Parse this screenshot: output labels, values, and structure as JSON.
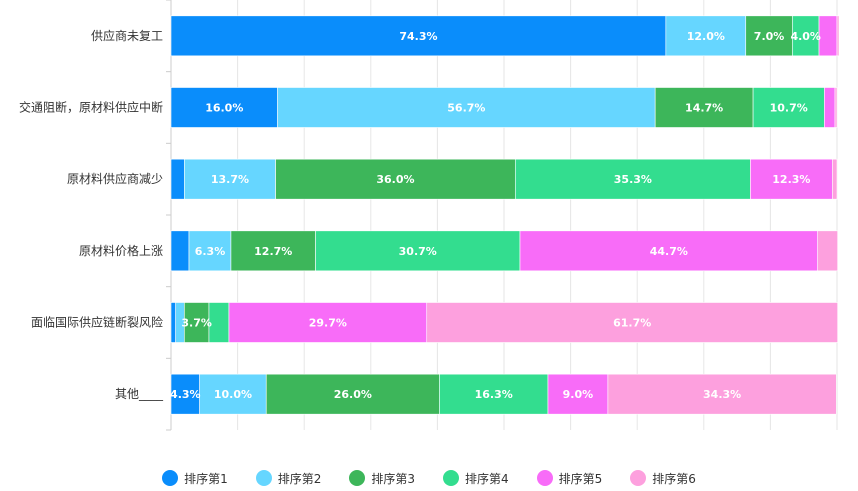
{
  "chart_data": {
    "type": "bar",
    "orientation": "horizontal",
    "stacked": true,
    "title": "",
    "xlabel": "",
    "ylabel": "",
    "xlim": [
      0,
      100
    ],
    "grid": true,
    "legend_position": "bottom",
    "categories": [
      "供应商未复工",
      "交通阻断，原材料供应中断",
      "原材料供应商减少",
      "原材料价格上涨",
      "面临国际供应链断裂风险",
      "其他____"
    ],
    "series": [
      {
        "name": "排序第1",
        "color": "#0A8DFB",
        "values": [
          74.3,
          16.0,
          2.0,
          2.7,
          0.7,
          4.3
        ],
        "labels": [
          "74.3%",
          "16.0%",
          "",
          "",
          "",
          "4.3%"
        ]
      },
      {
        "name": "排序第2",
        "color": "#66D6FF",
        "values": [
          12.0,
          56.7,
          13.7,
          6.3,
          1.3,
          10.0
        ],
        "labels": [
          "12.0%",
          "56.7%",
          "13.7%",
          "6.3%",
          "",
          "10.0%"
        ]
      },
      {
        "name": "排序第3",
        "color": "#3DB65A",
        "values": [
          7.0,
          14.7,
          36.0,
          12.7,
          3.7,
          26.0
        ],
        "labels": [
          "7.0%",
          "14.7%",
          "36.0%",
          "12.7%",
          "3.7%",
          "26.0%"
        ]
      },
      {
        "name": "排序第4",
        "color": "#33DD8F",
        "values": [
          4.0,
          10.7,
          35.3,
          30.7,
          3.0,
          16.3
        ],
        "labels": [
          "4.0%",
          "10.7%",
          "35.3%",
          "30.7%",
          "",
          "16.3%"
        ]
      },
      {
        "name": "排序第5",
        "color": "#F86CF8",
        "values": [
          2.7,
          1.6,
          12.3,
          44.7,
          29.7,
          9.0
        ],
        "labels": [
          "",
          "",
          "12.3%",
          "44.7%",
          "29.7%",
          "9.0%"
        ]
      },
      {
        "name": "排序第6",
        "color": "#FDA0DE",
        "values": [
          0.3,
          0.3,
          0.7,
          3.0,
          61.7,
          34.3
        ],
        "labels": [
          "",
          "",
          "",
          "",
          "61.7%",
          "34.3%"
        ]
      }
    ]
  }
}
